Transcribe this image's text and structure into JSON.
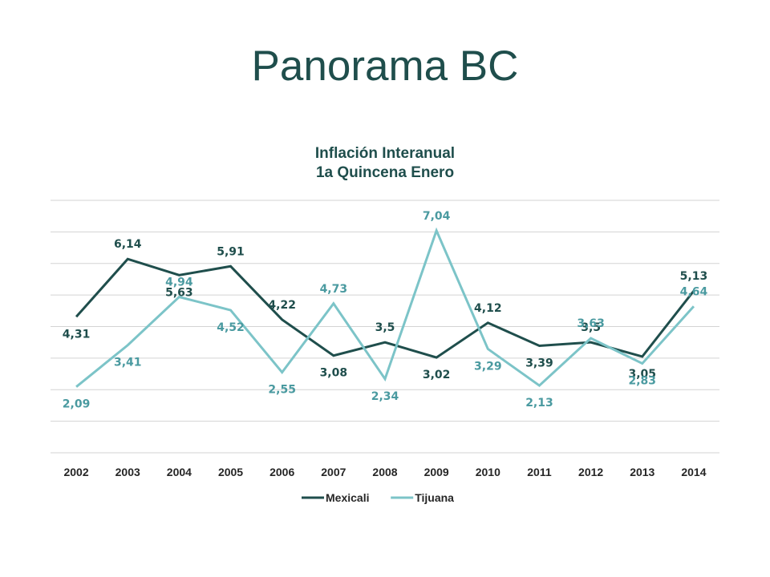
{
  "slide": {
    "title": "Panorama BC"
  },
  "chart_data": {
    "type": "line",
    "title": "Inflación Interanual",
    "subtitle": "1a Quincena Enero",
    "categories": [
      "2002",
      "2003",
      "2004",
      "2005",
      "2006",
      "2007",
      "2008",
      "2009",
      "2010",
      "2011",
      "2012",
      "2013",
      "2014"
    ],
    "ylim": [
      0,
      8
    ],
    "grid": true,
    "legend_position": "bottom",
    "series": [
      {
        "name": "Mexicali",
        "color": "#1f4e4c",
        "values": [
          4.31,
          6.14,
          5.63,
          5.91,
          4.22,
          3.08,
          3.5,
          3.02,
          4.12,
          3.39,
          3.5,
          3.05,
          5.13
        ],
        "labels": [
          "4,31",
          "6,14",
          "5,63",
          "5,91",
          "4,22",
          "3,08",
          "3,5",
          "3,02",
          "4,12",
          "3,39",
          "3,5",
          "3,05",
          "5,13"
        ]
      },
      {
        "name": "Tijuana",
        "color": "#7cc4c8",
        "label_color": "#4a9aa0",
        "values": [
          2.09,
          3.41,
          4.94,
          4.52,
          2.55,
          4.73,
          2.34,
          7.04,
          3.29,
          2.13,
          3.63,
          2.83,
          4.64
        ],
        "labels": [
          "2,09",
          "3,41",
          "4,94",
          "4,52",
          "2,55",
          "4,73",
          "2,34",
          "7,04",
          "3,29",
          "2,13",
          "3,63",
          "2,83",
          "4,64"
        ]
      }
    ]
  }
}
